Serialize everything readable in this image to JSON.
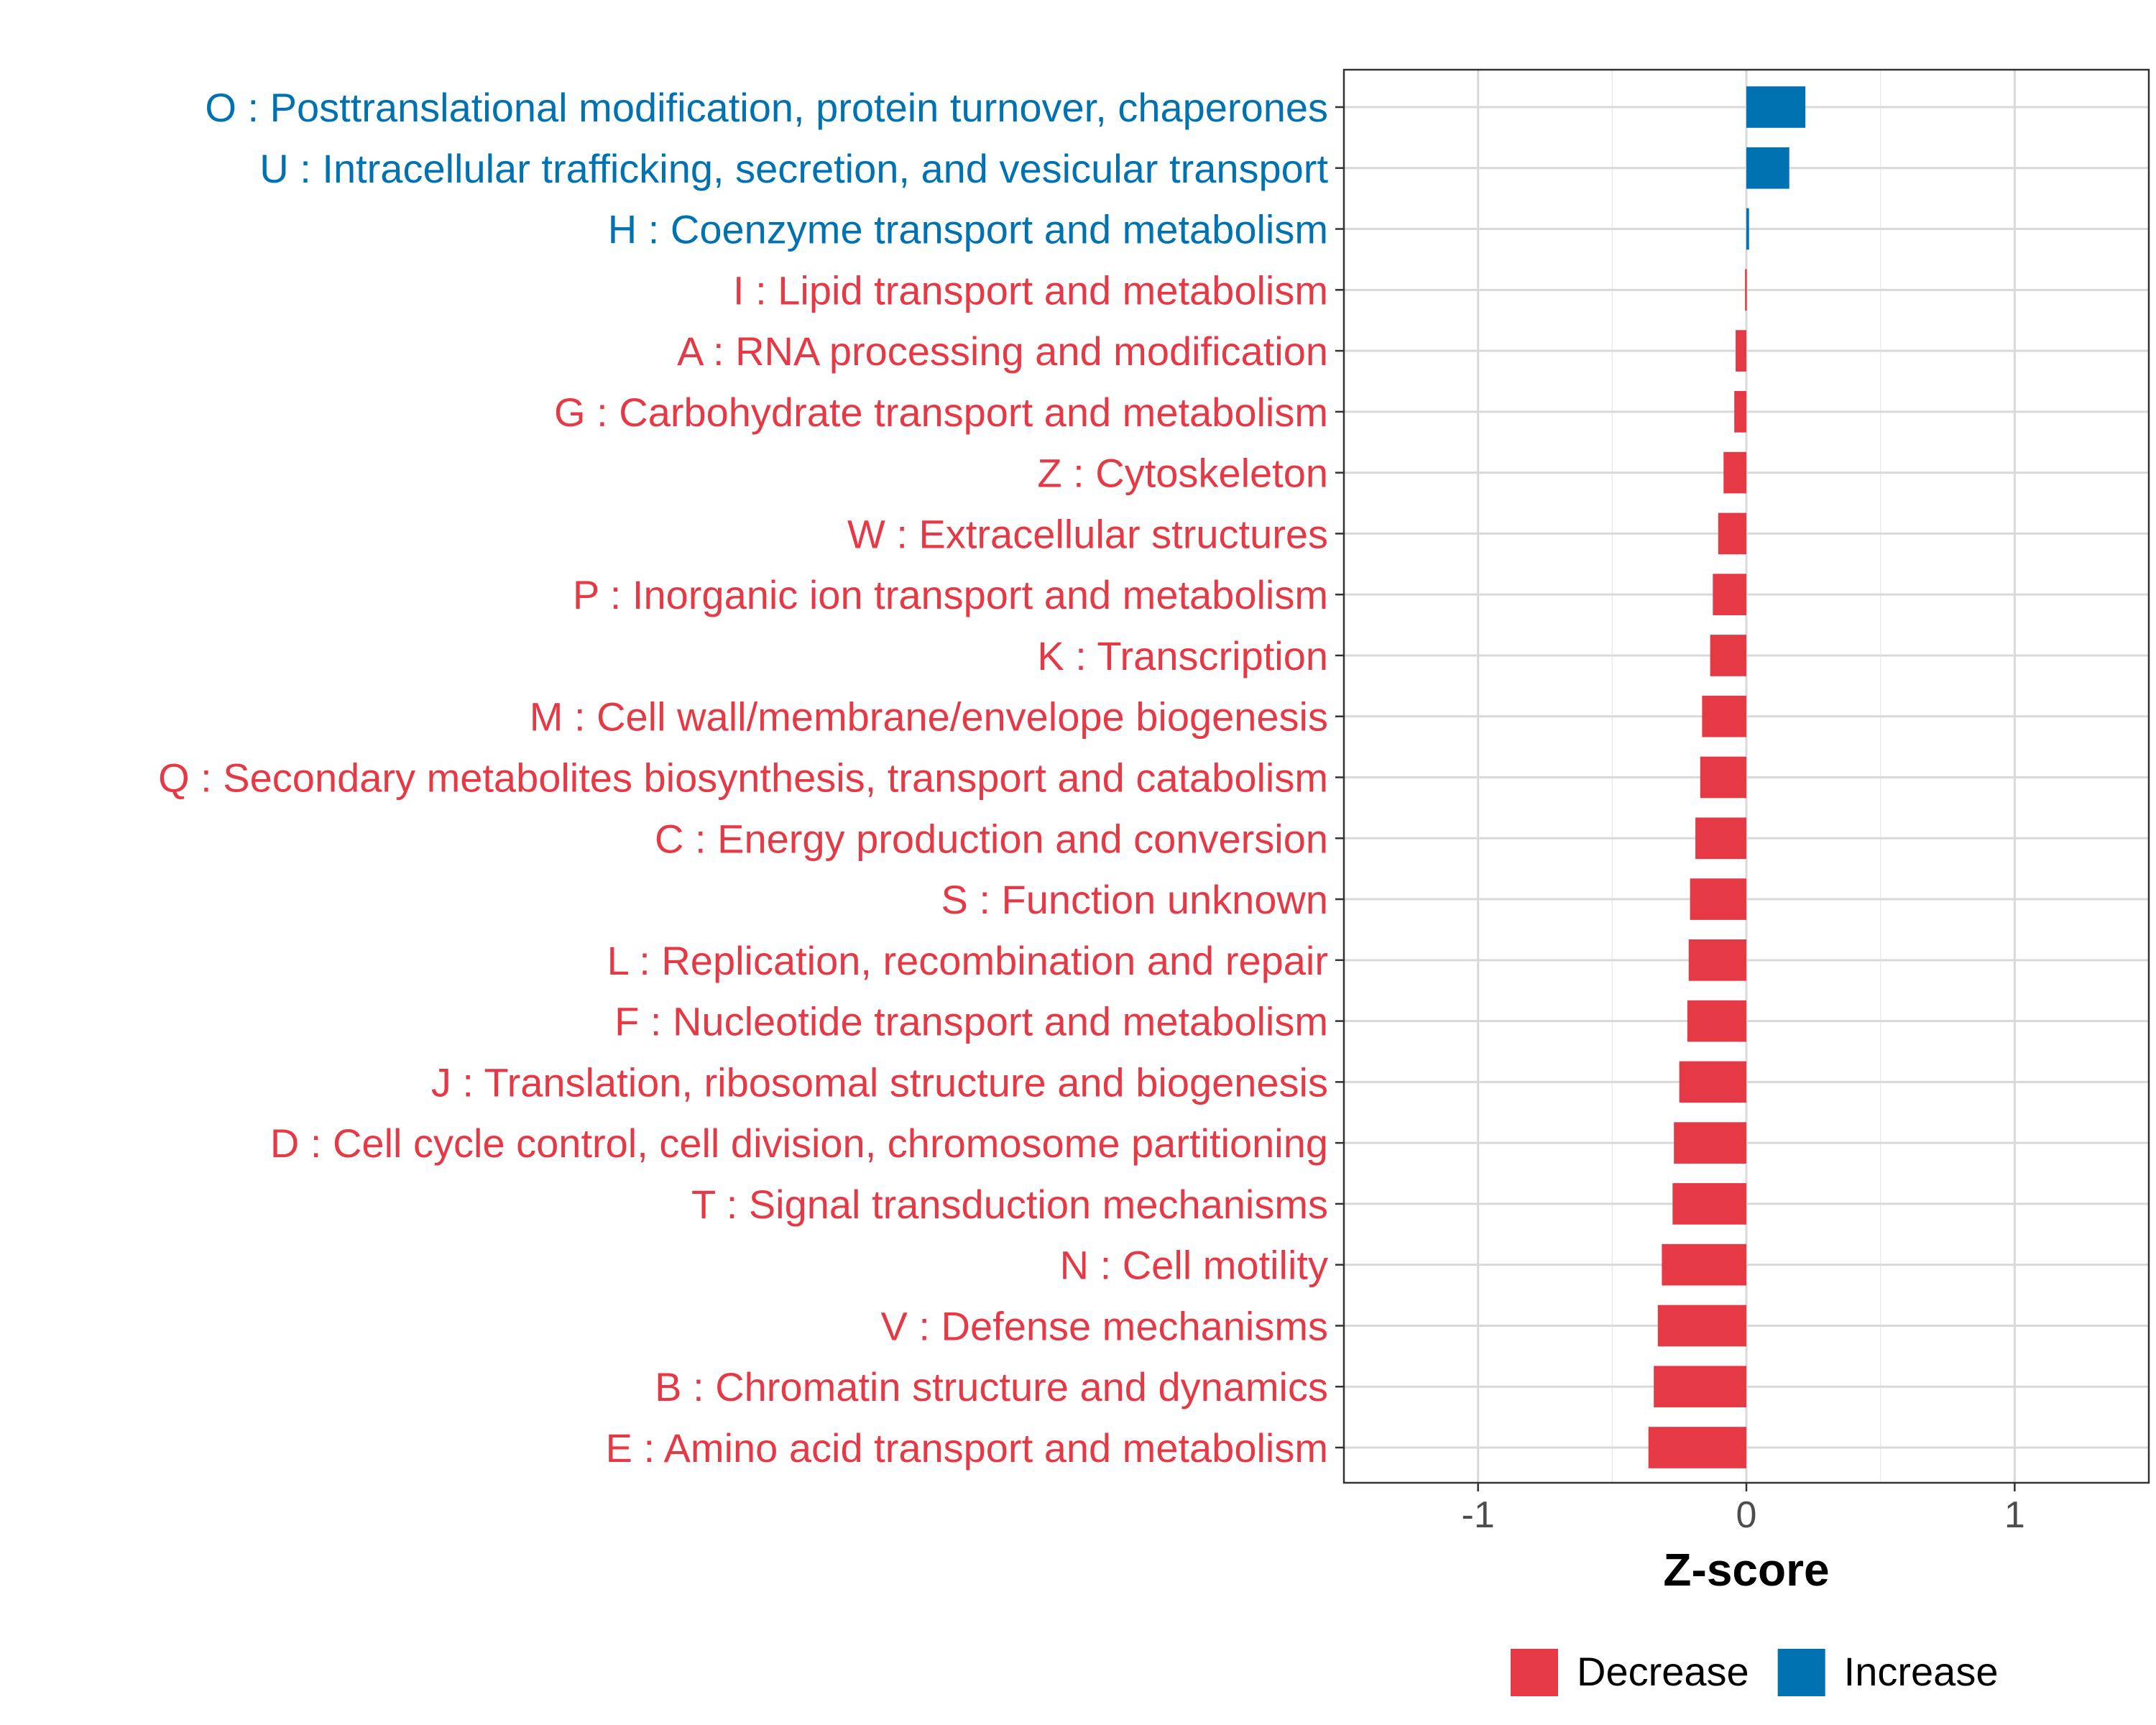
{
  "chart_data": {
    "type": "bar",
    "orientation": "horizontal",
    "xlabel": "Z-score",
    "xlim": [
      -1.5,
      1.5
    ],
    "xticks": [
      {
        "value": -1,
        "label": "-1"
      },
      {
        "value": 0,
        "label": "0"
      },
      {
        "value": 1,
        "label": "1"
      }
    ],
    "grid": true,
    "legend": {
      "position": "bottom",
      "entries": [
        {
          "key": "decrease",
          "label": "Decrease",
          "color": "#e63946"
        },
        {
          "key": "increase",
          "label": "Increase",
          "color": "#0072b2"
        }
      ]
    },
    "categories": [
      {
        "label": "O : Posttranslational modification, protein turnover, chaperones",
        "value": 0.22,
        "group": "increase"
      },
      {
        "label": "U : Intracellular trafficking, secretion, and vesicular transport",
        "value": 0.16,
        "group": "increase"
      },
      {
        "label": "H : Coenzyme transport and metabolism",
        "value": 0.01,
        "group": "increase"
      },
      {
        "label": "I : Lipid transport and metabolism",
        "value": -0.005,
        "group": "decrease"
      },
      {
        "label": "A : RNA processing and modification",
        "value": -0.04,
        "group": "decrease"
      },
      {
        "label": "G : Carbohydrate transport and metabolism",
        "value": -0.045,
        "group": "decrease"
      },
      {
        "label": "Z : Cytoskeleton",
        "value": -0.085,
        "group": "decrease"
      },
      {
        "label": "W : Extracellular structures",
        "value": -0.105,
        "group": "decrease"
      },
      {
        "label": "P : Inorganic ion transport and metabolism",
        "value": -0.125,
        "group": "decrease"
      },
      {
        "label": "K : Transcription",
        "value": -0.135,
        "group": "decrease"
      },
      {
        "label": "M : Cell wall/membrane/envelope biogenesis",
        "value": -0.165,
        "group": "decrease"
      },
      {
        "label": "Q : Secondary metabolites biosynthesis, transport and catabolism",
        "value": -0.172,
        "group": "decrease"
      },
      {
        "label": "C : Energy production and conversion",
        "value": -0.19,
        "group": "decrease"
      },
      {
        "label": "S : Function unknown",
        "value": -0.21,
        "group": "decrease"
      },
      {
        "label": "L : Replication, recombination and repair",
        "value": -0.215,
        "group": "decrease"
      },
      {
        "label": "F : Nucleotide transport and metabolism",
        "value": -0.22,
        "group": "decrease"
      },
      {
        "label": "J : Translation, ribosomal structure and biogenesis",
        "value": -0.25,
        "group": "decrease"
      },
      {
        "label": "D : Cell cycle control, cell division, chromosome partitioning",
        "value": -0.27,
        "group": "decrease"
      },
      {
        "label": "T : Signal transduction mechanisms",
        "value": -0.275,
        "group": "decrease"
      },
      {
        "label": "N : Cell motility",
        "value": -0.315,
        "group": "decrease"
      },
      {
        "label": "V : Defense mechanisms",
        "value": -0.33,
        "group": "decrease"
      },
      {
        "label": "B : Chromatin structure and dynamics",
        "value": -0.345,
        "group": "decrease"
      },
      {
        "label": "E : Amino acid transport and metabolism",
        "value": -0.365,
        "group": "decrease"
      }
    ]
  }
}
